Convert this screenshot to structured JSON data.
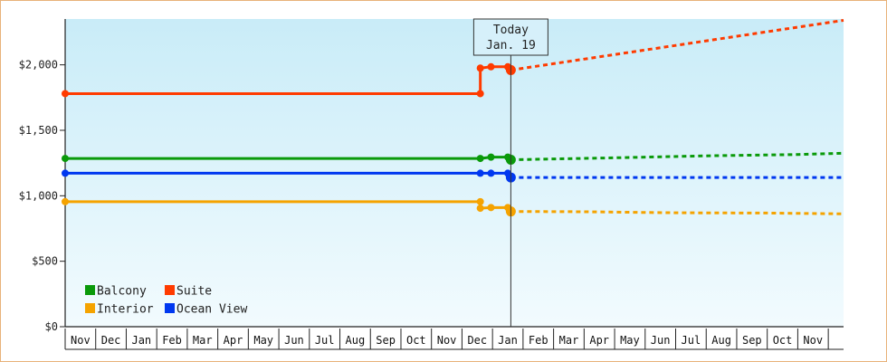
{
  "chart_data": {
    "type": "line",
    "title": "",
    "xlabel": "",
    "ylabel": "",
    "ylim": [
      0,
      2350
    ],
    "y_ticks": [
      {
        "value": 0,
        "label": "$0"
      },
      {
        "value": 500,
        "label": "$500"
      },
      {
        "value": 1000,
        "label": "$1,000"
      },
      {
        "value": 1500,
        "label": "$1,500"
      },
      {
        "value": 2000,
        "label": "$2,000"
      }
    ],
    "x_months": [
      "Nov",
      "Dec",
      "Jan",
      "Feb",
      "Mar",
      "Apr",
      "May",
      "Jun",
      "Jul",
      "Aug",
      "Sep",
      "Oct",
      "Nov",
      "Dec",
      "Jan",
      "Feb",
      "Mar",
      "Apr",
      "May",
      "Jun",
      "Jul",
      "Aug",
      "Sep",
      "Oct",
      "Nov"
    ],
    "xlim": [
      0,
      25.5
    ],
    "grid": false,
    "background": "light-blue-gradient",
    "today": {
      "line1": "Today",
      "line2": "Jan. 19",
      "x": 14.6
    },
    "legend": {
      "placement": "bottom-left",
      "entries": [
        {
          "label": "Balcony",
          "color": "#0a9a0a"
        },
        {
          "label": "Suite",
          "color": "#ff3b00"
        },
        {
          "label": "Interior",
          "color": "#f5a300"
        },
        {
          "label": "Ocean View",
          "color": "#0038f0"
        }
      ]
    },
    "series": [
      {
        "name": "Balcony",
        "color": "#0a9a0a",
        "history": [
          [
            0,
            1285
          ],
          [
            13.6,
            1285
          ],
          [
            13.95,
            1295
          ],
          [
            14.5,
            1295
          ],
          [
            14.6,
            1275
          ]
        ],
        "forecast": [
          [
            14.6,
            1275
          ],
          [
            18,
            1290
          ],
          [
            21,
            1305
          ],
          [
            24,
            1315
          ],
          [
            25.5,
            1325
          ]
        ]
      },
      {
        "name": "Suite",
        "color": "#ff3b00",
        "history": [
          [
            0,
            1780
          ],
          [
            13.6,
            1780
          ],
          [
            13.6,
            1975
          ],
          [
            13.95,
            1985
          ],
          [
            14.5,
            1985
          ],
          [
            14.6,
            1960
          ]
        ],
        "forecast": [
          [
            14.6,
            1960
          ],
          [
            25.5,
            2340
          ]
        ]
      },
      {
        "name": "Interior",
        "color": "#f5a300",
        "history": [
          [
            0,
            955
          ],
          [
            13.6,
            955
          ],
          [
            13.6,
            905
          ],
          [
            13.95,
            910
          ],
          [
            14.5,
            910
          ],
          [
            14.6,
            880
          ]
        ],
        "forecast": [
          [
            14.6,
            880
          ],
          [
            17,
            878
          ],
          [
            20,
            870
          ],
          [
            23,
            868
          ],
          [
            25.5,
            862
          ]
        ]
      },
      {
        "name": "Ocean View",
        "color": "#0038f0",
        "history": [
          [
            0,
            1172
          ],
          [
            13.6,
            1172
          ],
          [
            13.95,
            1172
          ],
          [
            14.5,
            1172
          ],
          [
            14.6,
            1140
          ]
        ],
        "forecast": [
          [
            14.6,
            1140
          ],
          [
            25.5,
            1140
          ]
        ]
      }
    ]
  }
}
